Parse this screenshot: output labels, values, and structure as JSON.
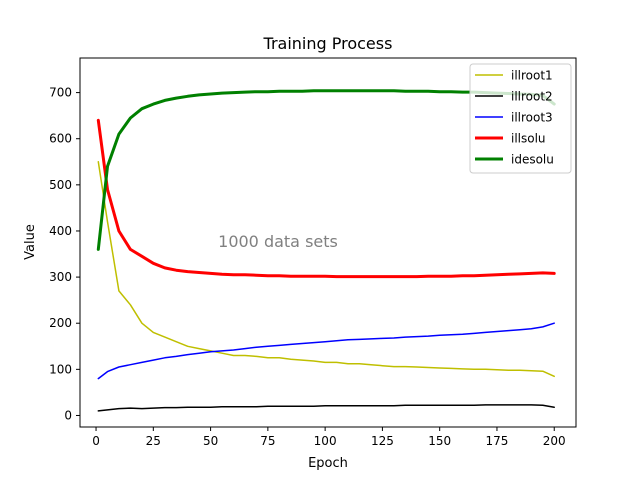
{
  "chart_data": {
    "type": "line",
    "title": "Training Process",
    "xlabel": "Epoch",
    "ylabel": "Value",
    "annotation": "1000 data sets",
    "xlim": [
      -7,
      209.5
    ],
    "ylim": [
      -25,
      775
    ],
    "xticks": [
      0,
      25,
      50,
      75,
      100,
      125,
      150,
      175,
      200
    ],
    "yticks": [
      0,
      100,
      200,
      300,
      400,
      500,
      600,
      700
    ],
    "grid": false,
    "legend_position": "top-right",
    "x": [
      1,
      5,
      10,
      15,
      20,
      25,
      30,
      35,
      40,
      45,
      50,
      55,
      60,
      65,
      70,
      75,
      80,
      85,
      90,
      95,
      100,
      105,
      110,
      115,
      120,
      125,
      130,
      135,
      140,
      145,
      150,
      155,
      160,
      165,
      170,
      175,
      180,
      185,
      190,
      195,
      200
    ],
    "series": [
      {
        "name": "illroot1",
        "color": "#bfbf00",
        "width": 1.5,
        "values": [
          550,
          420,
          270,
          240,
          200,
          180,
          170,
          160,
          150,
          145,
          140,
          135,
          130,
          130,
          128,
          125,
          125,
          122,
          120,
          118,
          115,
          115,
          112,
          112,
          110,
          108,
          106,
          106,
          105,
          104,
          103,
          102,
          101,
          100,
          100,
          99,
          98,
          98,
          97,
          96,
          85
        ]
      },
      {
        "name": "illroot2",
        "color": "#000000",
        "width": 1.5,
        "values": [
          10,
          12,
          15,
          16,
          15,
          16,
          17,
          17,
          18,
          18,
          18,
          19,
          19,
          19,
          19,
          20,
          20,
          20,
          20,
          20,
          21,
          21,
          21,
          21,
          21,
          21,
          21,
          22,
          22,
          22,
          22,
          22,
          22,
          22,
          23,
          23,
          23,
          23,
          23,
          22,
          18
        ]
      },
      {
        "name": "illroot3",
        "color": "#0000ff",
        "width": 1.5,
        "values": [
          80,
          95,
          105,
          110,
          115,
          120,
          125,
          128,
          132,
          135,
          138,
          140,
          142,
          145,
          148,
          150,
          152,
          154,
          156,
          158,
          160,
          162,
          164,
          165,
          166,
          167,
          168,
          170,
          171,
          172,
          174,
          175,
          176,
          178,
          180,
          182,
          184,
          186,
          188,
          192,
          200
        ]
      },
      {
        "name": "illsolu",
        "color": "#ff0000",
        "width": 3,
        "values": [
          640,
          490,
          400,
          360,
          345,
          330,
          320,
          315,
          312,
          310,
          308,
          306,
          305,
          305,
          304,
          303,
          303,
          302,
          302,
          302,
          302,
          301,
          301,
          301,
          301,
          301,
          301,
          301,
          301,
          302,
          302,
          302,
          303,
          303,
          304,
          305,
          306,
          307,
          308,
          309,
          308
        ]
      },
      {
        "name": "idesolu",
        "color": "#008000",
        "width": 3,
        "values": [
          360,
          540,
          610,
          645,
          665,
          675,
          683,
          688,
          692,
          695,
          697,
          699,
          700,
          701,
          702,
          702,
          703,
          703,
          703,
          704,
          704,
          704,
          704,
          704,
          704,
          704,
          704,
          703,
          703,
          703,
          702,
          702,
          701,
          701,
          700,
          699,
          698,
          697,
          696,
          694,
          675
        ]
      }
    ]
  }
}
